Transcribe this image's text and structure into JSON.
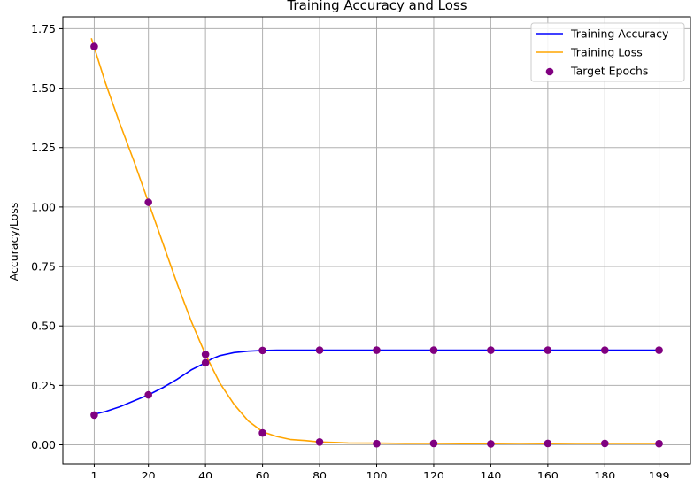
{
  "chart_data": {
    "type": "line",
    "title": "Training Accuracy and Loss",
    "xlabel": "",
    "ylabel": "Accuracy/Loss",
    "xlim": [
      -10,
      210
    ],
    "ylim": [
      -0.08,
      1.8
    ],
    "grid": true,
    "legend_position": "top-right",
    "x_ticks": [
      1,
      20,
      40,
      60,
      80,
      100,
      120,
      140,
      160,
      180,
      199
    ],
    "y_ticks": [
      0.0,
      0.25,
      0.5,
      0.75,
      1.0,
      1.25,
      1.5,
      1.75
    ],
    "y_tick_labels": [
      "0.00",
      "0.25",
      "0.50",
      "0.75",
      "1.00",
      "1.25",
      "1.50",
      "1.75"
    ],
    "series": [
      {
        "name": "Training Accuracy",
        "color": "#0000ff",
        "style": "line",
        "x": [
          0,
          5,
          10,
          15,
          20,
          25,
          30,
          35,
          40,
          42,
          45,
          50,
          55,
          60,
          65,
          70,
          80,
          90,
          100,
          110,
          120,
          130,
          140,
          150,
          160,
          170,
          180,
          190,
          199
        ],
        "y": [
          0.125,
          0.14,
          0.16,
          0.185,
          0.21,
          0.24,
          0.275,
          0.315,
          0.345,
          0.36,
          0.375,
          0.388,
          0.394,
          0.397,
          0.398,
          0.398,
          0.398,
          0.398,
          0.398,
          0.398,
          0.398,
          0.398,
          0.398,
          0.398,
          0.398,
          0.398,
          0.398,
          0.398,
          0.398
        ]
      },
      {
        "name": "Training Loss",
        "color": "#ffa500",
        "style": "line",
        "x": [
          0,
          5,
          10,
          15,
          20,
          25,
          30,
          35,
          40,
          45,
          50,
          55,
          60,
          65,
          70,
          75,
          80,
          85,
          90,
          100,
          110,
          120,
          130,
          140,
          150,
          160,
          170,
          180,
          190,
          199
        ],
        "y": [
          1.71,
          1.52,
          1.35,
          1.19,
          1.02,
          0.85,
          0.68,
          0.52,
          0.38,
          0.26,
          0.17,
          0.1,
          0.055,
          0.035,
          0.022,
          0.018,
          0.012,
          0.01,
          0.008,
          0.007,
          0.006,
          0.006,
          0.005,
          0.005,
          0.006,
          0.005,
          0.006,
          0.006,
          0.006,
          0.006
        ]
      },
      {
        "name": "Target Epochs",
        "color": "#800080",
        "style": "scatter",
        "x": [
          1,
          20,
          40,
          60,
          80,
          100,
          120,
          140,
          160,
          180,
          199,
          1,
          20,
          40,
          60,
          80,
          100,
          120,
          140,
          160,
          180,
          199
        ],
        "y": [
          0.125,
          0.21,
          0.345,
          0.397,
          0.398,
          0.398,
          0.398,
          0.398,
          0.398,
          0.398,
          0.398,
          1.675,
          1.02,
          0.38,
          0.05,
          0.012,
          0.005,
          0.006,
          0.004,
          0.006,
          0.006,
          0.005
        ]
      }
    ]
  }
}
